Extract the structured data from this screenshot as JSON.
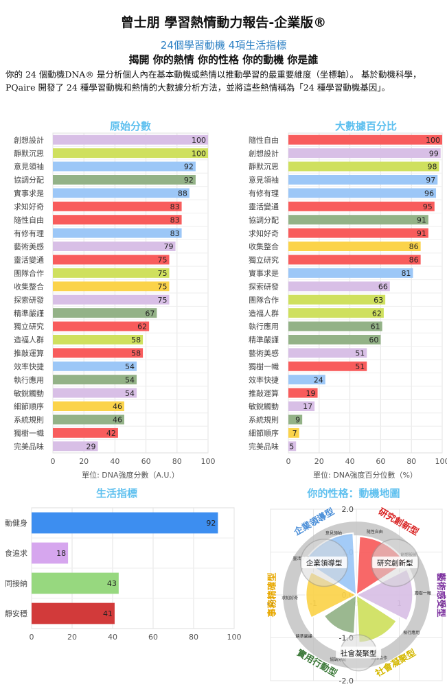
{
  "header": {
    "title": "曾士朋 學習熱情動力報告-企業版®",
    "subtitle": "24個學習動機 4項生活指標",
    "tagline": "揭開 你的熱情 你的性格 你的動機 你是誰",
    "intro": "你的 24 個動機DNA® 是分析個人內在基本動機或熱情以推動學習的最重要維度（坐標軸）。 基於動機科學，PQaire 開發了 24 種學習動機和熱情的大數據分析方法，並將這些熱情稱為「24 種學習動機基因」。"
  },
  "colors": {
    "lavender": "#d8bfe6",
    "lime": "#cfe05e",
    "blue": "#9cc7f7",
    "sage": "#93b287",
    "red": "#f85c5c",
    "gold": "#fbd34a"
  },
  "chart_data": [
    {
      "type": "bar",
      "title": "原始分數",
      "xlabel": "單位: DNA強度分數（A.U.）",
      "xlim": [
        0,
        100
      ],
      "ticks": [
        0,
        20,
        40,
        60,
        80,
        100
      ],
      "categories": [
        "創想設計",
        "靜默沉思",
        "意見領袖",
        "協調分配",
        "實事求是",
        "求知好奇",
        "隨性自由",
        "有修有理",
        "藝術美感",
        "靈活變通",
        "團隊合作",
        "收集整合",
        "探索研發",
        "精準嚴謹",
        "獨立研究",
        "造福人群",
        "推敲運算",
        "效率快捷",
        "執行應用",
        "敏銳觸動",
        "細節順序",
        "系統規則",
        "獨樹一幟",
        "完美品味"
      ],
      "values": [
        100,
        100,
        92,
        92,
        88,
        83,
        83,
        83,
        79,
        75,
        75,
        75,
        75,
        67,
        62,
        58,
        58,
        54,
        54,
        54,
        46,
        46,
        42,
        29
      ],
      "colors": [
        "lavender",
        "lime",
        "blue",
        "sage",
        "blue",
        "red",
        "red",
        "blue",
        "lavender",
        "red",
        "lime",
        "gold",
        "lavender",
        "sage",
        "red",
        "lime",
        "red",
        "blue",
        "sage",
        "lavender",
        "gold",
        "sage",
        "red",
        "lavender"
      ]
    },
    {
      "type": "bar",
      "title": "大數據百分比",
      "xlabel": "單位: DNA強度百分位數（%）",
      "xlim": [
        0,
        100
      ],
      "ticks": [
        0,
        20,
        40,
        60,
        80,
        100
      ],
      "categories": [
        "隨性自由",
        "創想設計",
        "靜默沉思",
        "意見領袖",
        "有修有理",
        "靈活變通",
        "協調分配",
        "求知好奇",
        "收集整合",
        "獨立研究",
        "實事求是",
        "探索研發",
        "團隊合作",
        "造福人群",
        "執行應用",
        "精準嚴謹",
        "藝術美感",
        "獨樹一幟",
        "效率快捷",
        "推敲運算",
        "敏銳觸動",
        "系統規則",
        "細節順序",
        "完美品味"
      ],
      "values": [
        100,
        99,
        98,
        97,
        96,
        95,
        91,
        91,
        86,
        86,
        81,
        66,
        63,
        62,
        61,
        60,
        51,
        51,
        24,
        19,
        17,
        9,
        7,
        5
      ],
      "colors": [
        "red",
        "lavender",
        "lime",
        "blue",
        "blue",
        "red",
        "sage",
        "red",
        "gold",
        "red",
        "blue",
        "lavender",
        "lime",
        "lime",
        "sage",
        "sage",
        "lavender",
        "red",
        "blue",
        "red",
        "lavender",
        "sage",
        "gold",
        "lavender"
      ]
    },
    {
      "type": "bar",
      "title": "生活指標",
      "xlim": [
        0,
        100
      ],
      "ticks": [
        0,
        20,
        40,
        60,
        80,
        100
      ],
      "categories": [
        "動健身",
        "食追求",
        "同接納",
        "靜安穩"
      ],
      "values": [
        92,
        18,
        43,
        41
      ],
      "colors": [
        "#3d8ef0",
        "#d6a6ee",
        "#97d87f",
        "#d23a3a"
      ]
    },
    {
      "type": "pie",
      "title": "你的性格：動機地圖",
      "xlim": [
        -2,
        2
      ],
      "ylim": [
        -2,
        2
      ],
      "ticks": [
        -2,
        -1,
        0,
        1,
        2
      ],
      "segments": [
        {
          "label": "研究創新型",
          "value": 0.88,
          "color": "#f85c5c",
          "text_color": "#d81f1f"
        },
        {
          "label": "藝術感受型",
          "value": 0.85,
          "color": "#d8bfe6",
          "text_color": "#7b2f9e"
        },
        {
          "label": "社會凝聚型",
          "value": 0.72,
          "color": "#cfe05e",
          "text_color": "#d4b800"
        },
        {
          "label": "實用行動型",
          "value": 0.58,
          "color": "#93b287",
          "text_color": "#3d7a3a"
        },
        {
          "label": "事務精確型",
          "value": 0.76,
          "color": "#fbd34a",
          "text_color": "#e8a800"
        },
        {
          "label": "企業領導型",
          "value": 0.93,
          "color": "#9cc7f7",
          "text_color": "#4a8ed8"
        }
      ],
      "center_labels": [
        "企業領導型",
        "研究創新型",
        "社會凝聚型"
      ],
      "ring_labels": [
        "意見領袖",
        "隨性自由",
        "創想設計",
        "獨樹一幟",
        "執行應用",
        "團隊合作",
        "協調分配",
        "精準嚴謹",
        "求知好奇",
        "靈活變通"
      ]
    }
  ]
}
